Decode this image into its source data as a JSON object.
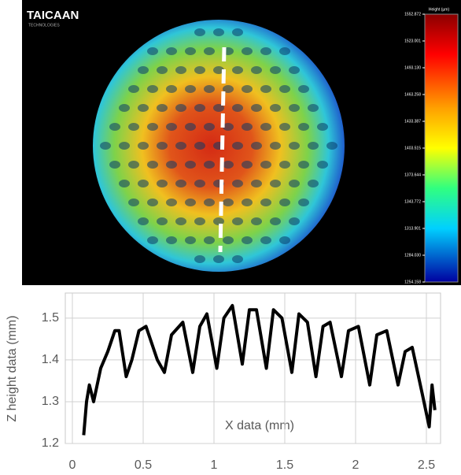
{
  "chart_data": [
    {
      "type": "heatmap",
      "logo": "TAICAAN",
      "logo_subtitle": "TECHNOLOGIES",
      "colorbar_title": "Height (µm)",
      "clim": [
        1254.158,
        1552.872
      ],
      "colorbar_ticks": [
        1552.872,
        1523.001,
        {
          "value": 1493.13,
          "label": "1493.130"
        },
        1463.258,
        1433.387,
        1403.515,
        1373.644,
        1343.772,
        1313.901,
        {
          "value": 1284.03,
          "label": "1284.030"
        },
        1254.158
      ]
    },
    {
      "type": "line",
      "x_label": "X data (mm)",
      "y_label": "Z height data (mm)",
      "color": "#000000",
      "grid": true,
      "xlim": [
        -0.05,
        2.6
      ],
      "ylim": [
        1.2,
        1.56
      ],
      "xticks": [
        0,
        0.5,
        1,
        1.5,
        2,
        2.5
      ],
      "yticks": [
        1.2,
        1.3,
        1.4,
        1.5
      ],
      "series": [
        {
          "x": [
            0.08,
            0.1,
            0.12,
            0.15,
            0.2,
            0.25,
            0.3,
            0.33,
            0.38,
            0.42,
            0.47,
            0.52,
            0.6,
            0.65,
            0.7,
            0.78,
            0.85,
            0.9,
            0.95,
            1.02,
            1.07,
            1.13,
            1.2,
            1.25,
            1.3,
            1.37,
            1.42,
            1.48,
            1.55,
            1.6,
            1.66,
            1.72,
            1.77,
            1.82,
            1.9,
            1.95,
            2.02,
            2.1,
            2.15,
            2.22,
            2.3,
            2.35,
            2.4,
            2.47,
            2.52,
            2.54,
            2.56
          ],
          "values": [
            1.22,
            1.3,
            1.34,
            1.3,
            1.38,
            1.42,
            1.47,
            1.47,
            1.36,
            1.4,
            1.47,
            1.48,
            1.4,
            1.37,
            1.46,
            1.49,
            1.37,
            1.48,
            1.51,
            1.38,
            1.5,
            1.53,
            1.39,
            1.52,
            1.52,
            1.38,
            1.52,
            1.5,
            1.37,
            1.51,
            1.49,
            1.36,
            1.48,
            1.49,
            1.36,
            1.47,
            1.48,
            1.34,
            1.46,
            1.47,
            1.34,
            1.42,
            1.43,
            1.32,
            1.24,
            1.34,
            1.28
          ]
        }
      ]
    }
  ]
}
